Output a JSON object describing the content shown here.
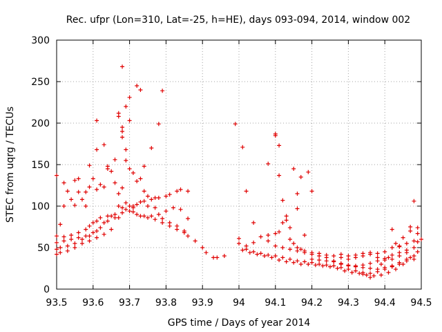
{
  "chart_data": {
    "type": "scatter",
    "title": "Rec. ufpr (Lon=310, Lat=-25, h=HE), days 093-094, 2014, window 002",
    "xlabel": "GPS time / Days of year 2014",
    "ylabel": "STEC from uqrg / TECUs",
    "xlim": [
      93.5,
      94.5
    ],
    "ylim": [
      0,
      300
    ],
    "xticks": [
      93.5,
      93.6,
      93.7,
      93.8,
      93.9,
      94.0,
      94.1,
      94.2,
      94.3,
      94.4,
      94.5
    ],
    "xtick_labels": [
      "93.5",
      "93.6",
      "93.7",
      "93.8",
      "93.9",
      "94",
      "94.1",
      "94.2",
      "94.3",
      "94.4",
      "94.5"
    ],
    "yticks": [
      0,
      50,
      100,
      150,
      200,
      250,
      300
    ],
    "ytick_labels": [
      "0",
      "50",
      "100",
      "150",
      "200",
      "250",
      "300"
    ],
    "grid": true,
    "marker": "+",
    "color": "#e00000",
    "series": [
      {
        "name": "STEC",
        "points": [
          [
            93.5,
            137
          ],
          [
            93.52,
            128
          ],
          [
            93.53,
            118
          ],
          [
            93.55,
            131
          ],
          [
            93.56,
            133
          ],
          [
            93.58,
            117
          ],
          [
            93.59,
            149
          ],
          [
            93.61,
            168
          ],
          [
            93.61,
            203
          ],
          [
            93.63,
            174
          ],
          [
            93.64,
            148
          ],
          [
            93.66,
            156
          ],
          [
            93.67,
            208
          ],
          [
            93.67,
            212
          ],
          [
            93.68,
            268
          ],
          [
            93.68,
            183
          ],
          [
            93.68,
            190
          ],
          [
            93.68,
            195
          ],
          [
            93.69,
            168
          ],
          [
            93.69,
            220
          ],
          [
            93.7,
            231
          ],
          [
            93.7,
            203
          ],
          [
            93.72,
            245
          ],
          [
            93.73,
            240
          ],
          [
            93.74,
            148
          ],
          [
            93.76,
            170
          ],
          [
            93.78,
            199
          ],
          [
            93.79,
            239
          ],
          [
            93.51,
            78
          ],
          [
            93.52,
            100
          ],
          [
            93.54,
            108
          ],
          [
            93.55,
            101
          ],
          [
            93.56,
            117
          ],
          [
            93.57,
            108
          ],
          [
            93.58,
            100
          ],
          [
            93.59,
            123
          ],
          [
            93.6,
            133
          ],
          [
            93.61,
            120
          ],
          [
            93.62,
            126
          ],
          [
            93.63,
            123
          ],
          [
            93.64,
            145
          ],
          [
            93.65,
            142
          ],
          [
            93.66,
            128
          ],
          [
            93.67,
            115
          ],
          [
            93.68,
            122
          ],
          [
            93.69,
            155
          ],
          [
            93.7,
            145
          ],
          [
            93.71,
            140
          ],
          [
            93.72,
            130
          ],
          [
            93.73,
            133
          ],
          [
            93.74,
            118
          ],
          [
            93.75,
            112
          ],
          [
            93.77,
            110
          ],
          [
            93.5,
            64
          ],
          [
            93.52,
            63
          ],
          [
            93.54,
            65
          ],
          [
            93.56,
            68
          ],
          [
            93.58,
            72
          ],
          [
            93.59,
            76
          ],
          [
            93.6,
            80
          ],
          [
            93.61,
            82
          ],
          [
            93.62,
            86
          ],
          [
            93.64,
            88
          ],
          [
            93.66,
            90
          ],
          [
            93.68,
            98
          ],
          [
            93.7,
            100
          ],
          [
            93.71,
            98
          ],
          [
            93.72,
            102
          ],
          [
            93.74,
            106
          ],
          [
            93.76,
            108
          ],
          [
            93.78,
            110
          ],
          [
            93.8,
            112
          ],
          [
            93.81,
            114
          ],
          [
            93.83,
            118
          ],
          [
            93.84,
            120
          ],
          [
            93.86,
            118
          ],
          [
            93.5,
            56
          ],
          [
            93.52,
            58
          ],
          [
            93.54,
            60
          ],
          [
            93.56,
            62
          ],
          [
            93.58,
            64
          ],
          [
            93.6,
            68
          ],
          [
            93.62,
            74
          ],
          [
            93.64,
            82
          ],
          [
            93.66,
            86
          ],
          [
            93.68,
            92
          ],
          [
            93.7,
            94
          ],
          [
            93.72,
            90
          ],
          [
            93.74,
            88
          ],
          [
            93.76,
            88
          ],
          [
            93.78,
            90
          ],
          [
            93.8,
            94
          ],
          [
            93.82,
            98
          ],
          [
            93.84,
            96
          ],
          [
            93.86,
            85
          ],
          [
            93.5,
            48
          ],
          [
            93.51,
            50
          ],
          [
            93.53,
            52
          ],
          [
            93.55,
            55
          ],
          [
            93.57,
            60
          ],
          [
            93.59,
            64
          ],
          [
            93.61,
            70
          ],
          [
            93.63,
            80
          ],
          [
            93.65,
            88
          ],
          [
            93.67,
            100
          ],
          [
            93.69,
            104
          ],
          [
            93.71,
            100
          ],
          [
            93.73,
            105
          ],
          [
            93.75,
            100
          ],
          [
            93.77,
            98
          ],
          [
            93.79,
            85
          ],
          [
            93.81,
            80
          ],
          [
            93.83,
            76
          ],
          [
            93.85,
            70
          ],
          [
            93.86,
            64
          ],
          [
            93.88,
            58
          ],
          [
            93.9,
            50
          ],
          [
            93.91,
            44
          ],
          [
            93.93,
            38
          ],
          [
            93.94,
            38
          ],
          [
            93.96,
            40
          ],
          [
            93.5,
            42
          ],
          [
            93.51,
            44
          ],
          [
            93.53,
            46
          ],
          [
            93.55,
            50
          ],
          [
            93.57,
            55
          ],
          [
            93.59,
            58
          ],
          [
            93.61,
            62
          ],
          [
            93.63,
            66
          ],
          [
            93.65,
            72
          ],
          [
            93.67,
            86
          ],
          [
            93.69,
            96
          ],
          [
            93.71,
            93
          ],
          [
            93.73,
            88
          ],
          [
            93.75,
            86
          ],
          [
            93.77,
            84
          ],
          [
            93.79,
            80
          ],
          [
            93.81,
            76
          ],
          [
            93.83,
            72
          ],
          [
            93.85,
            68
          ],
          [
            93.99,
            199
          ],
          [
            94.01,
            171
          ],
          [
            94.02,
            118
          ],
          [
            94.04,
            80
          ],
          [
            94.08,
            151
          ],
          [
            94.1,
            185
          ],
          [
            94.1,
            187
          ],
          [
            94.11,
            173
          ],
          [
            94.11,
            137
          ],
          [
            94.12,
            107
          ],
          [
            94.13,
            83
          ],
          [
            94.14,
            74
          ],
          [
            94.15,
            145
          ],
          [
            94.16,
            115
          ],
          [
            94.16,
            97
          ],
          [
            94.17,
            135
          ],
          [
            94.18,
            65
          ],
          [
            94.19,
            141
          ],
          [
            94.2,
            118
          ],
          [
            94.0,
            61
          ],
          [
            94.02,
            52
          ],
          [
            94.04,
            56
          ],
          [
            94.06,
            63
          ],
          [
            94.08,
            65
          ],
          [
            94.1,
            67
          ],
          [
            94.11,
            69
          ],
          [
            94.12,
            80
          ],
          [
            94.13,
            88
          ],
          [
            94.14,
            60
          ],
          [
            94.15,
            55
          ],
          [
            94.16,
            50
          ],
          [
            94.17,
            48
          ],
          [
            94.18,
            46
          ],
          [
            94.2,
            44
          ],
          [
            94.22,
            43
          ],
          [
            94.24,
            41
          ],
          [
            94.26,
            40
          ],
          [
            94.28,
            38
          ],
          [
            94.3,
            36
          ],
          [
            94.32,
            38
          ],
          [
            94.34,
            40
          ],
          [
            94.36,
            42
          ],
          [
            94.38,
            43
          ],
          [
            94.4,
            45
          ],
          [
            94.42,
            50
          ],
          [
            94.44,
            52
          ],
          [
            94.46,
            55
          ],
          [
            94.48,
            58
          ],
          [
            94.5,
            60
          ],
          [
            94.01,
            47
          ],
          [
            94.03,
            44
          ],
          [
            94.05,
            42
          ],
          [
            94.07,
            40
          ],
          [
            94.09,
            38
          ],
          [
            94.11,
            35
          ],
          [
            94.13,
            33
          ],
          [
            94.15,
            32
          ],
          [
            94.17,
            30
          ],
          [
            94.19,
            30
          ],
          [
            94.21,
            29
          ],
          [
            94.23,
            28
          ],
          [
            94.25,
            27
          ],
          [
            94.27,
            25
          ],
          [
            94.29,
            22
          ],
          [
            94.31,
            20
          ],
          [
            94.33,
            19
          ],
          [
            94.35,
            17
          ],
          [
            94.37,
            16
          ],
          [
            94.39,
            17
          ],
          [
            94.41,
            20
          ],
          [
            94.43,
            24
          ],
          [
            94.45,
            30
          ],
          [
            94.47,
            38
          ],
          [
            94.49,
            45
          ],
          [
            94.0,
            55
          ],
          [
            94.02,
            48
          ],
          [
            94.04,
            45
          ],
          [
            94.06,
            43
          ],
          [
            94.08,
            41
          ],
          [
            94.1,
            40
          ],
          [
            94.12,
            38
          ],
          [
            94.14,
            36
          ],
          [
            94.16,
            34
          ],
          [
            94.18,
            33
          ],
          [
            94.2,
            32
          ],
          [
            94.22,
            30
          ],
          [
            94.24,
            29
          ],
          [
            94.26,
            28
          ],
          [
            94.28,
            26
          ],
          [
            94.3,
            24
          ],
          [
            94.32,
            22
          ],
          [
            94.34,
            20
          ],
          [
            94.36,
            19
          ],
          [
            94.38,
            21
          ],
          [
            94.4,
            24
          ],
          [
            94.42,
            27
          ],
          [
            94.44,
            32
          ],
          [
            94.46,
            36
          ],
          [
            94.48,
            40
          ],
          [
            94.08,
            58
          ],
          [
            94.1,
            52
          ],
          [
            94.12,
            50
          ],
          [
            94.14,
            48
          ],
          [
            94.16,
            46
          ],
          [
            94.18,
            44
          ],
          [
            94.2,
            42
          ],
          [
            94.22,
            40
          ],
          [
            94.24,
            38
          ],
          [
            94.26,
            34
          ],
          [
            94.28,
            30
          ],
          [
            94.3,
            28
          ],
          [
            94.32,
            27
          ],
          [
            94.34,
            29
          ],
          [
            94.36,
            31
          ],
          [
            94.38,
            34
          ],
          [
            94.4,
            37
          ],
          [
            94.42,
            41
          ],
          [
            94.44,
            44
          ],
          [
            94.46,
            47
          ],
          [
            94.48,
            50
          ],
          [
            94.2,
            36
          ],
          [
            94.22,
            35
          ],
          [
            94.24,
            34
          ],
          [
            94.26,
            33
          ],
          [
            94.28,
            31
          ],
          [
            94.3,
            29
          ],
          [
            94.32,
            28
          ],
          [
            94.34,
            26
          ],
          [
            94.36,
            25
          ],
          [
            94.38,
            24
          ],
          [
            94.4,
            26
          ],
          [
            94.42,
            28
          ],
          [
            94.44,
            30
          ],
          [
            94.46,
            34
          ],
          [
            94.48,
            36
          ],
          [
            94.28,
            42
          ],
          [
            94.3,
            40
          ],
          [
            94.32,
            41
          ],
          [
            94.34,
            43
          ],
          [
            94.36,
            44
          ],
          [
            94.38,
            38
          ],
          [
            94.4,
            35
          ],
          [
            94.42,
            36
          ],
          [
            94.44,
            40
          ],
          [
            94.46,
            44
          ],
          [
            94.47,
            70
          ],
          [
            94.47,
            75
          ],
          [
            94.48,
            106
          ],
          [
            94.49,
            74
          ],
          [
            94.49,
            67
          ],
          [
            94.49,
            57
          ],
          [
            94.42,
            72
          ],
          [
            94.44,
            51
          ],
          [
            94.45,
            62
          ],
          [
            94.43,
            55
          ],
          [
            94.36,
            14
          ],
          [
            94.34,
            18
          ],
          [
            94.39,
            30
          ],
          [
            94.41,
            38
          ]
        ]
      }
    ]
  }
}
